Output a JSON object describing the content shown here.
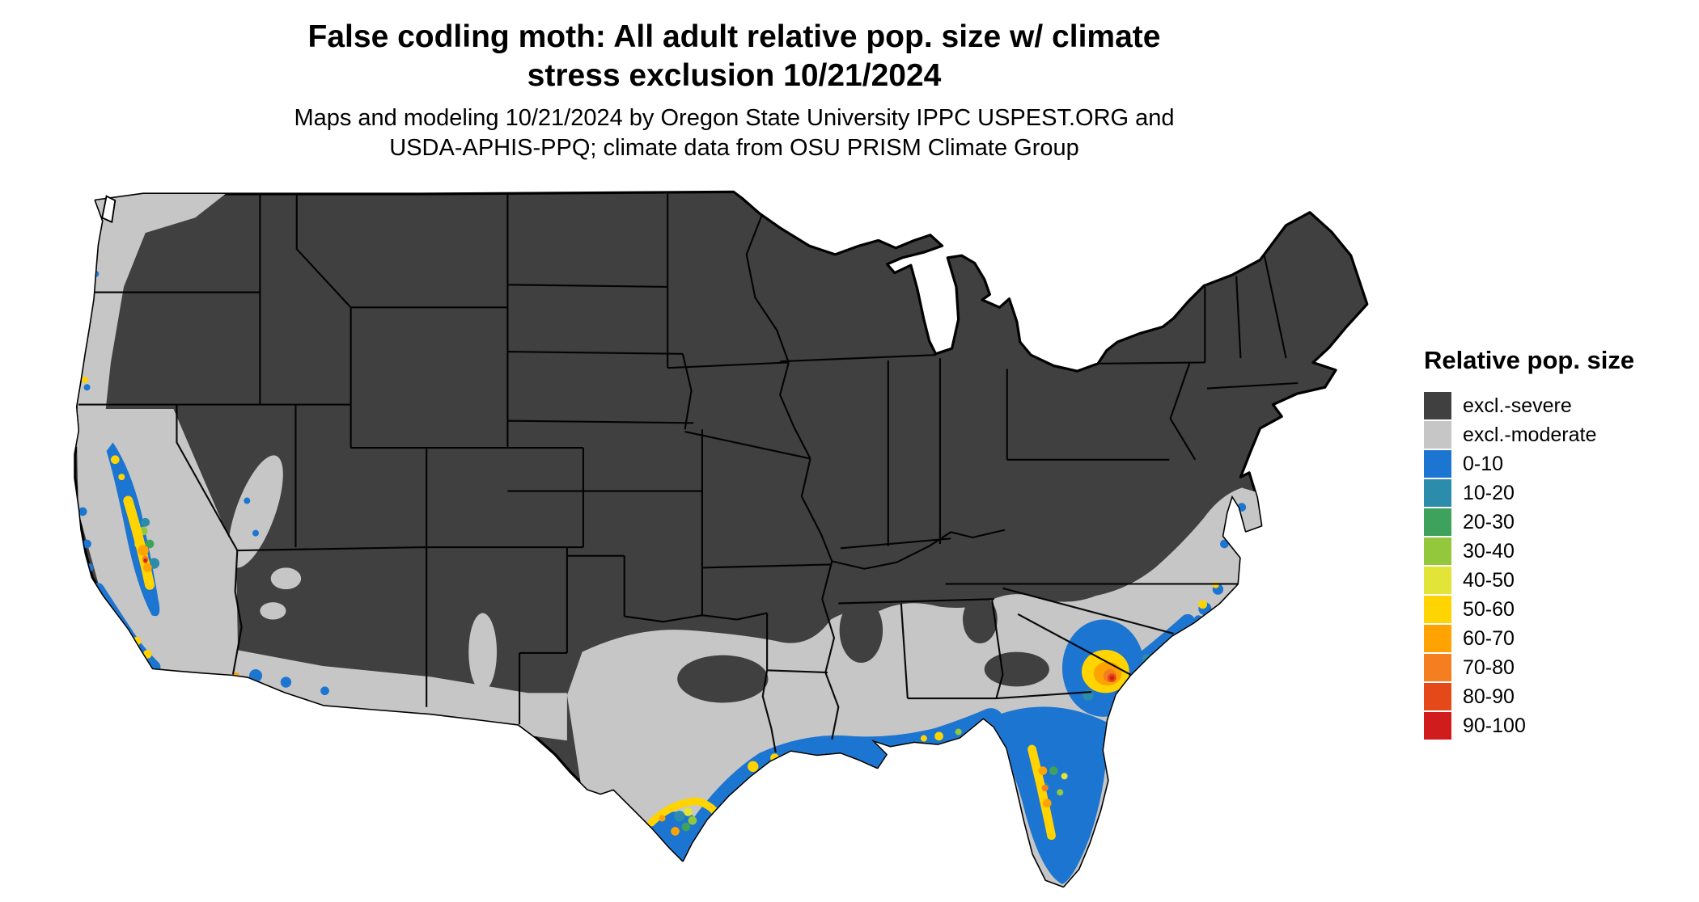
{
  "title": {
    "line1": "False codling moth: All adult relative pop. size w/ climate",
    "line2": "stress exclusion 10/21/2024"
  },
  "subtitle": {
    "line1": "Maps and modeling 10/21/2024 by Oregon State University IPPC USPEST.ORG and",
    "line2": "USDA-APHIS-PPQ; climate data from OSU PRISM Climate Group"
  },
  "map": {
    "area": "Contiguous United States",
    "background_color": "#ffffff",
    "border_color": "#000000"
  },
  "legend": {
    "title": "Relative pop. size",
    "items": [
      {
        "label": "excl.-severe",
        "color": "#404040"
      },
      {
        "label": "excl.-moderate",
        "color": "#c6c6c6"
      },
      {
        "label": "0-10",
        "color": "#1c75d1"
      },
      {
        "label": "10-20",
        "color": "#2b8cab"
      },
      {
        "label": "20-30",
        "color": "#3ea25c"
      },
      {
        "label": "30-40",
        "color": "#93c83d"
      },
      {
        "label": "40-50",
        "color": "#e2e437"
      },
      {
        "label": "50-60",
        "color": "#ffd400"
      },
      {
        "label": "60-70",
        "color": "#ffa303"
      },
      {
        "label": "70-80",
        "color": "#f57e20"
      },
      {
        "label": "80-90",
        "color": "#e5491a"
      },
      {
        "label": "90-100",
        "color": "#d01c1c"
      }
    ]
  }
}
